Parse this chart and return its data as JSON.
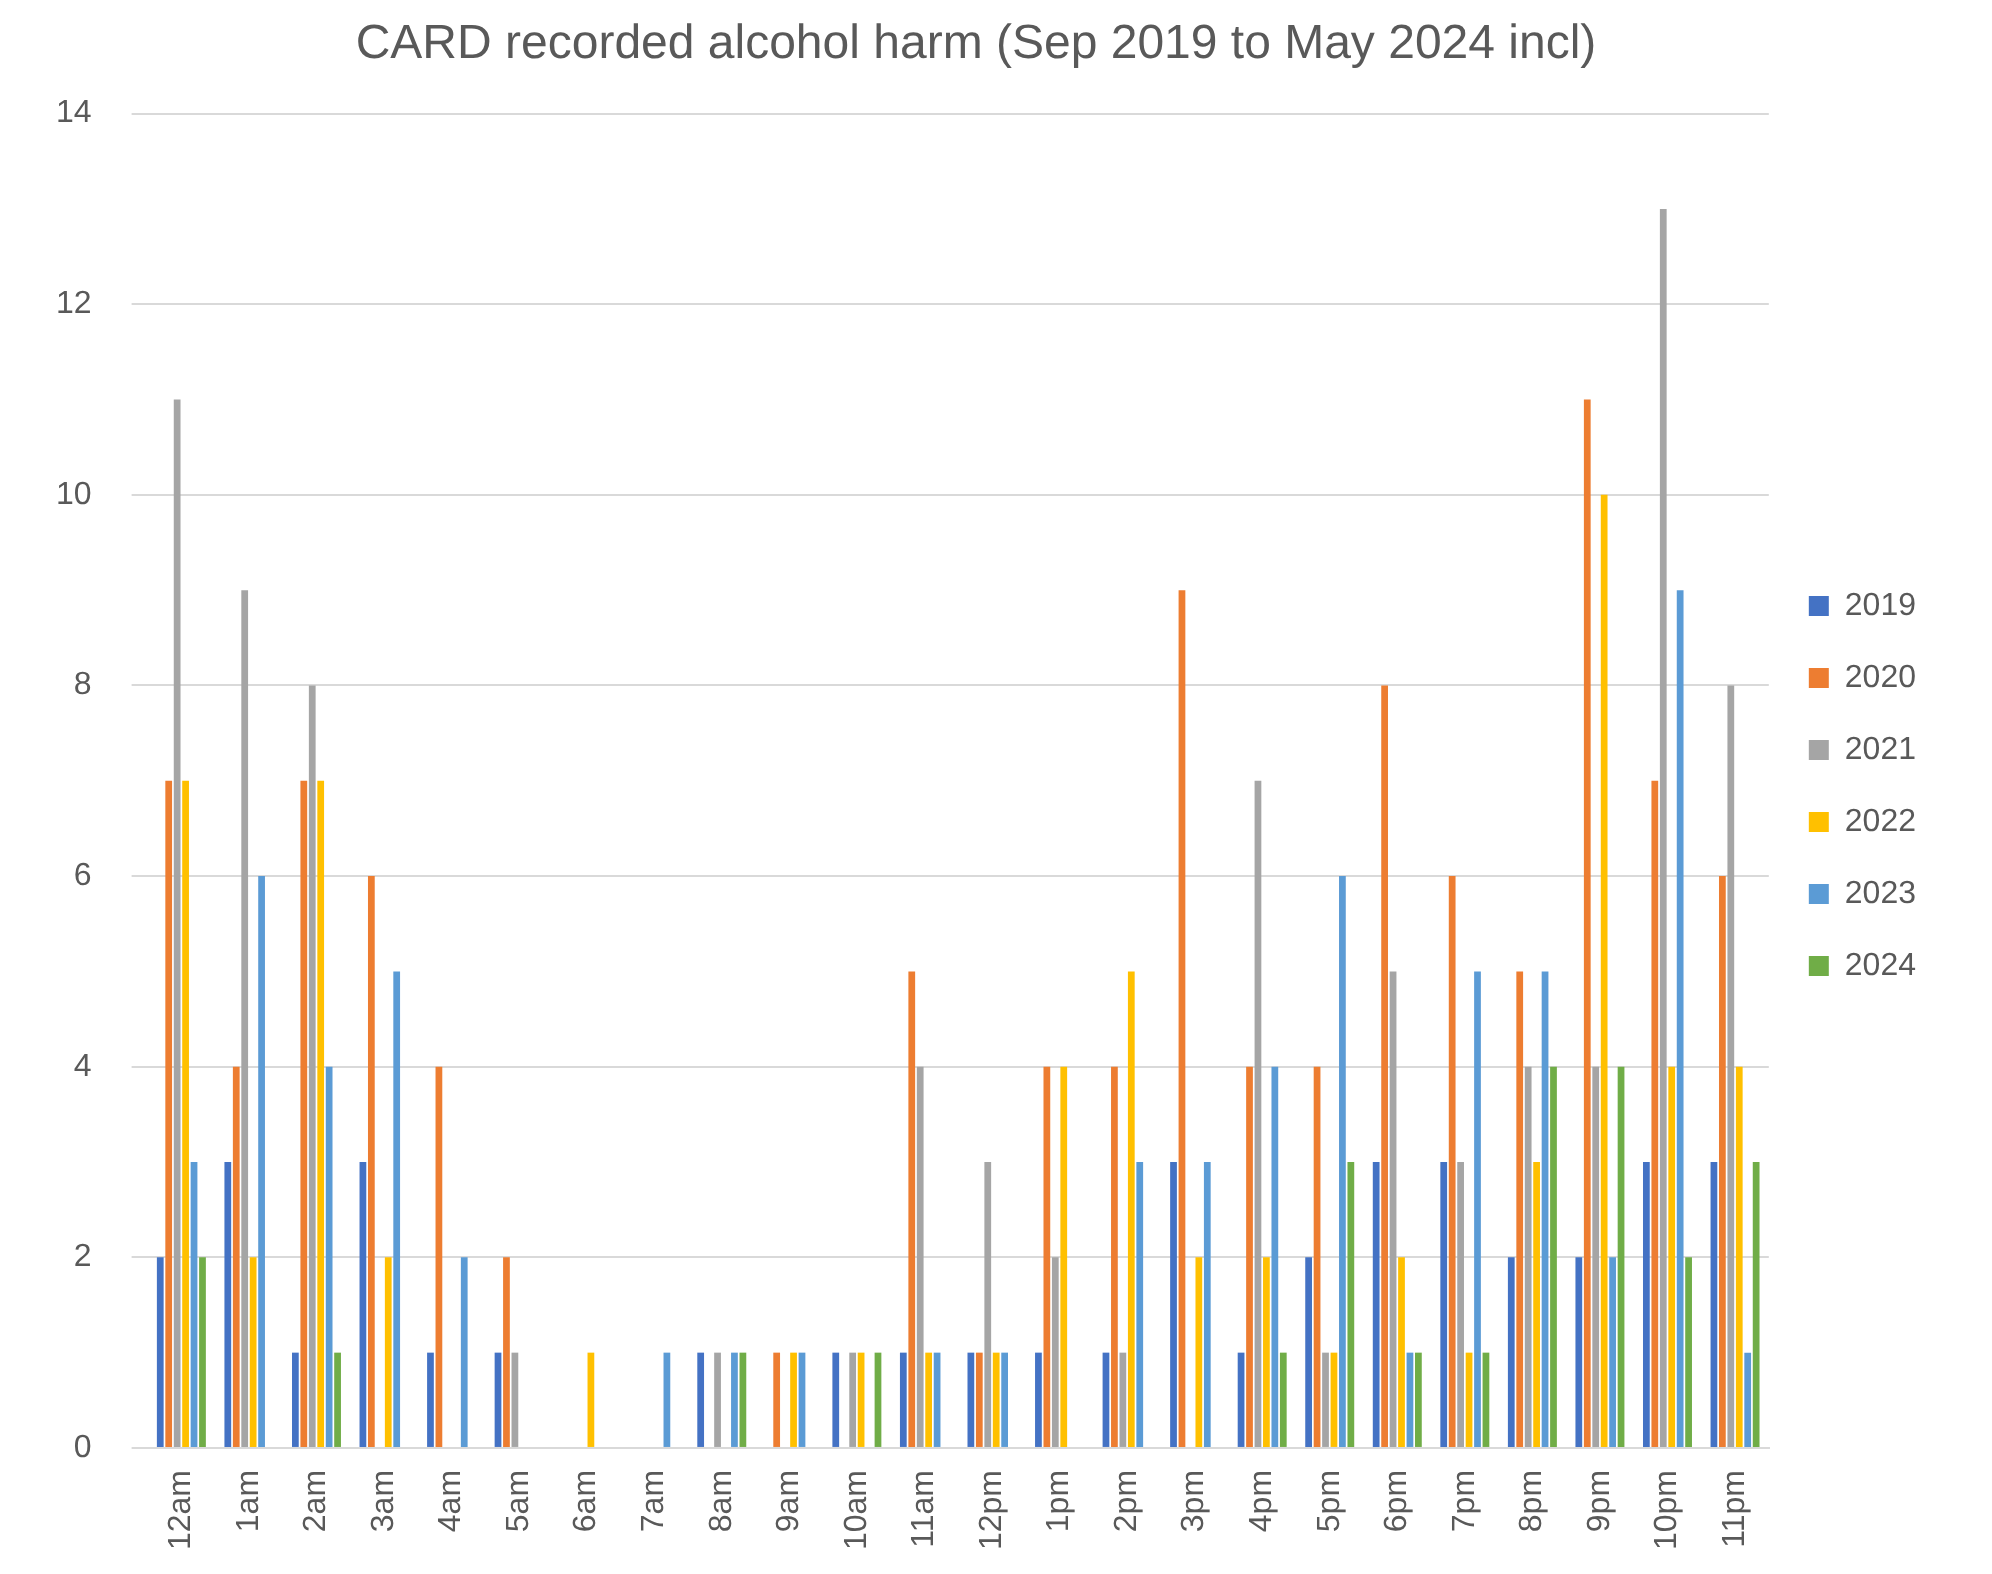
{
  "chart_data": {
    "type": "bar",
    "title": "CARD recorded alcohol harm (Sep 2019 to May 2024 incl)",
    "categories": [
      "12am",
      "1am",
      "2am",
      "3am",
      "4am",
      "5am",
      "6am",
      "7am",
      "8am",
      "9am",
      "10am",
      "11am",
      "12pm",
      "1pm",
      "2pm",
      "3pm",
      "4pm",
      "5pm",
      "6pm",
      "7pm",
      "8pm",
      "9pm",
      "10pm",
      "11pm"
    ],
    "series": [
      {
        "name": "2019",
        "color": "#4472c4",
        "values": [
          2,
          3,
          1,
          3,
          1,
          1,
          0,
          0,
          1,
          0,
          1,
          1,
          1,
          1,
          1,
          3,
          1,
          2,
          3,
          3,
          2,
          2,
          3,
          3
        ]
      },
      {
        "name": "2020",
        "color": "#ed7d31",
        "values": [
          7,
          4,
          7,
          6,
          4,
          2,
          0,
          0,
          0,
          1,
          0,
          5,
          1,
          4,
          4,
          9,
          4,
          4,
          8,
          6,
          5,
          11,
          7,
          6
        ]
      },
      {
        "name": "2021",
        "color": "#a5a5a5",
        "values": [
          11,
          9,
          8,
          0,
          0,
          1,
          0,
          0,
          1,
          0,
          1,
          4,
          3,
          2,
          1,
          0,
          7,
          1,
          5,
          3,
          4,
          4,
          13,
          8
        ]
      },
      {
        "name": "2022",
        "color": "#ffc000",
        "values": [
          7,
          2,
          7,
          2,
          0,
          0,
          1,
          0,
          0,
          1,
          1,
          1,
          1,
          4,
          5,
          2,
          2,
          1,
          2,
          1,
          3,
          10,
          4,
          4
        ]
      },
      {
        "name": "2023",
        "color": "#5b9bd5",
        "values": [
          3,
          6,
          4,
          5,
          2,
          0,
          0,
          1,
          1,
          1,
          0,
          1,
          1,
          0,
          3,
          3,
          4,
          6,
          1,
          5,
          5,
          2,
          9,
          1
        ]
      },
      {
        "name": "2024",
        "color": "#70ad47",
        "values": [
          2,
          0,
          1,
          0,
          0,
          0,
          0,
          0,
          1,
          0,
          1,
          0,
          0,
          0,
          0,
          0,
          1,
          3,
          1,
          1,
          4,
          4,
          2,
          3
        ]
      }
    ],
    "ylim": [
      0,
      14
    ],
    "yticks": [
      0,
      2,
      4,
      6,
      8,
      10,
      12,
      14
    ],
    "grid": "y",
    "legend": "right"
  }
}
